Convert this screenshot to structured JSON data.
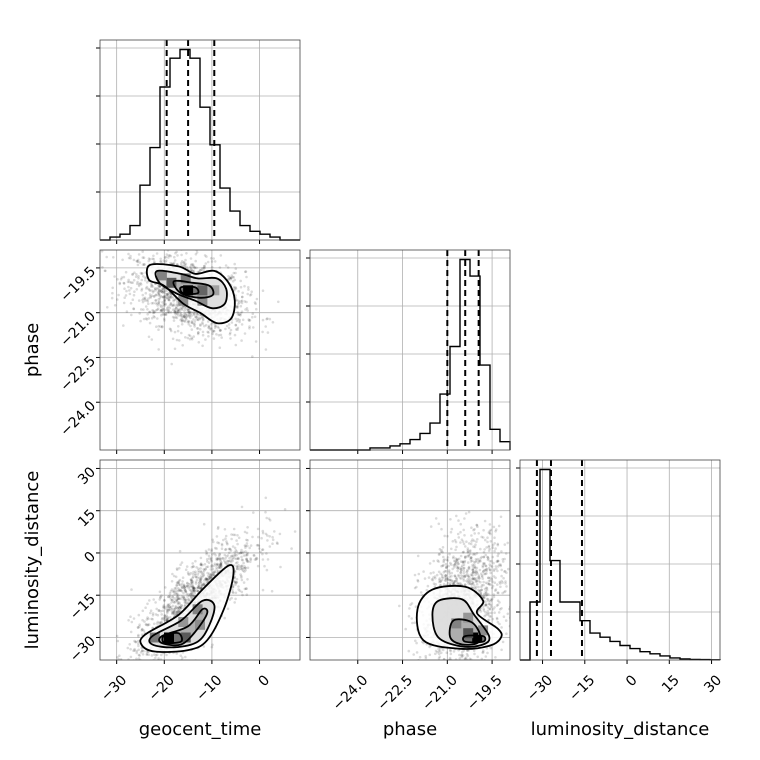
{
  "chart_data": {
    "type": "corner",
    "parameters": [
      "geocent_time",
      "phase",
      "luminosity_distance"
    ],
    "axis_labels": {
      "geocent_time": "geocent_time",
      "phase": "phase",
      "luminosity_distance": "luminosity_distance"
    },
    "ranges": {
      "geocent_time": [
        -33.5,
        8.5
      ],
      "phase": [
        -25.6,
        -18.9
      ],
      "luminosity_distance": [
        -38.0,
        33.0
      ]
    },
    "ticks": {
      "geocent_time": [
        -30,
        -20,
        -10,
        0
      ],
      "phase": [
        -24.0,
        -22.5,
        -21.0,
        -19.5
      ],
      "luminosity_distance": [
        -30,
        -15,
        0,
        15,
        30
      ]
    },
    "tick_labels": {
      "geocent_time": [
        "−30",
        "−20",
        "−10",
        "0"
      ],
      "phase": [
        "−24.0",
        "−22.5",
        "−21.0",
        "−19.5"
      ],
      "luminosity_distance": [
        "−30",
        "−15",
        "0",
        "15",
        "30"
      ]
    },
    "quantiles": {
      "geocent_time": [
        -19.5,
        -15.0,
        -9.5
      ],
      "phase": [
        -21.0,
        -20.4,
        -19.95
      ],
      "luminosity_distance": [
        -32.0,
        -27.0,
        -16.0
      ]
    },
    "histograms": {
      "geocent_time": {
        "edges": [
          -33.5,
          -31.4,
          -29.3,
          -27.2,
          -25.1,
          -23.0,
          -20.9,
          -18.8,
          -16.7,
          -14.6,
          -12.5,
          -10.4,
          -8.3,
          -6.2,
          -4.1,
          -2.0,
          0.1,
          2.2,
          4.3,
          6.4,
          8.5
        ],
        "counts": [
          0.0,
          0.01,
          0.02,
          0.05,
          0.19,
          0.32,
          0.53,
          0.63,
          0.66,
          0.63,
          0.46,
          0.33,
          0.18,
          0.1,
          0.05,
          0.03,
          0.02,
          0.01,
          0.0,
          0.0
        ]
      },
      "phase": {
        "edges": [
          -25.6,
          -25.265,
          -24.93,
          -24.595,
          -24.26,
          -23.925,
          -23.59,
          -23.255,
          -22.92,
          -22.585,
          -22.25,
          -21.915,
          -21.58,
          -21.245,
          -20.91,
          -20.575,
          -20.24,
          -19.905,
          -19.57,
          -19.235,
          -18.9
        ],
        "counts": [
          0,
          0,
          0,
          0,
          0,
          0,
          0.01,
          0.01,
          0.02,
          0.03,
          0.05,
          0.08,
          0.13,
          0.27,
          0.5,
          0.92,
          0.84,
          0.41,
          0.1,
          0.04
        ]
      },
      "luminosity_distance": {
        "edges": [
          -38.0,
          -34.45,
          -30.9,
          -27.35,
          -23.8,
          -20.25,
          -16.7,
          -13.15,
          -9.6,
          -6.05,
          -2.5,
          1.05,
          4.6,
          8.15,
          11.7,
          15.25,
          18.8,
          22.35,
          25.9,
          29.45,
          33.0
        ],
        "counts": [
          0,
          0.28,
          0.92,
          0.48,
          0.28,
          0.28,
          0.19,
          0.13,
          0.11,
          0.09,
          0.07,
          0.055,
          0.04,
          0.03,
          0.02,
          0.01,
          0.005,
          0.003,
          0.002,
          0.001
        ]
      }
    },
    "pairs": [
      {
        "x": "geocent_time",
        "y": "phase",
        "hot_cells": [
          [
            -15.0,
            -20.25,
            1.0
          ],
          [
            -18.5,
            -20.0,
            0.55
          ],
          [
            -12.0,
            -20.25,
            0.5
          ],
          [
            -15.5,
            -19.85,
            0.4
          ],
          [
            -20.5,
            -19.75,
            0.35
          ],
          [
            -12.0,
            -20.6,
            0.3
          ],
          [
            -16.0,
            -20.6,
            0.3
          ],
          [
            -9.5,
            -20.25,
            0.2
          ]
        ],
        "contours": [
          [
            [
              -23.0,
              -19.4
            ],
            [
              -17.0,
              -19.45
            ],
            [
              -13.5,
              -19.7
            ],
            [
              -9.5,
              -19.6
            ],
            [
              -6.5,
              -20.0
            ],
            [
              -5.2,
              -20.6
            ],
            [
              -6.0,
              -21.2
            ],
            [
              -9.0,
              -21.35
            ],
            [
              -12.5,
              -21.0
            ],
            [
              -16.0,
              -20.7
            ],
            [
              -20.0,
              -20.1
            ],
            [
              -23.2,
              -19.9
            ]
          ],
          [
            [
              -21.5,
              -19.6
            ],
            [
              -16.5,
              -19.7
            ],
            [
              -13.0,
              -19.85
            ],
            [
              -9.0,
              -19.85
            ],
            [
              -7.0,
              -20.2
            ],
            [
              -7.3,
              -20.7
            ],
            [
              -10.0,
              -20.85
            ],
            [
              -13.5,
              -20.6
            ],
            [
              -17.5,
              -20.35
            ],
            [
              -21.0,
              -20.0
            ]
          ],
          [
            [
              -18.0,
              -19.95
            ],
            [
              -14.0,
              -20.0
            ],
            [
              -10.5,
              -20.1
            ],
            [
              -9.8,
              -20.4
            ],
            [
              -12.5,
              -20.5
            ],
            [
              -16.5,
              -20.35
            ]
          ],
          [
            [
              -16.5,
              -20.15
            ],
            [
              -13.5,
              -20.15
            ],
            [
              -13.0,
              -20.35
            ],
            [
              -16.0,
              -20.35
            ]
          ]
        ],
        "scatter": {
          "mean": [
            -15.0,
            -20.4
          ],
          "sd": [
            6.0,
            0.65
          ],
          "rho": -0.35,
          "n": 1600
        }
      },
      {
        "x": "geocent_time",
        "y": "luminosity_distance",
        "hot_cells": [
          [
            -19.0,
            -30.0,
            1.0
          ],
          [
            -15.5,
            -30.0,
            0.55
          ],
          [
            -22.0,
            -30.0,
            0.4
          ],
          [
            -13.0,
            -20.0,
            0.35
          ],
          [
            -12.5,
            -25.5,
            0.3
          ],
          [
            -16.0,
            -24.5,
            0.25
          ]
        ],
        "contours": [
          [
            [
              -24.0,
              -29.0
            ],
            [
              -17.0,
              -22.0
            ],
            [
              -12.0,
              -13.0
            ],
            [
              -6.5,
              -4.5
            ],
            [
              -5.5,
              -8.0
            ],
            [
              -7.5,
              -20.0
            ],
            [
              -11.0,
              -31.0
            ],
            [
              -15.0,
              -34.5
            ],
            [
              -22.0,
              -35.0
            ],
            [
              -24.8,
              -32.5
            ]
          ],
          [
            [
              -22.5,
              -29.5
            ],
            [
              -16.5,
              -24.0
            ],
            [
              -12.0,
              -17.0
            ],
            [
              -9.5,
              -18.5
            ],
            [
              -10.5,
              -25.5
            ],
            [
              -13.0,
              -31.5
            ],
            [
              -18.0,
              -33.5
            ],
            [
              -22.5,
              -32.5
            ]
          ],
          [
            [
              -20.5,
              -29.5
            ],
            [
              -15.0,
              -26.0
            ],
            [
              -12.0,
              -20.0
            ],
            [
              -11.0,
              -21.5
            ],
            [
              -13.5,
              -28.0
            ],
            [
              -16.5,
              -32.5
            ],
            [
              -20.5,
              -32.0
            ]
          ],
          [
            [
              -20.0,
              -29.3
            ],
            [
              -17.0,
              -28.5
            ],
            [
              -16.5,
              -31.5
            ],
            [
              -20.0,
              -31.8
            ]
          ]
        ],
        "scatter": {
          "mean": [
            -14.0,
            -18.0
          ],
          "sd": [
            6.5,
            12.0
          ],
          "rho": 0.82,
          "n": 1700
        }
      },
      {
        "x": "phase",
        "y": "luminosity_distance",
        "hot_cells": [
          [
            -20.0,
            -30.0,
            1.0
          ],
          [
            -20.3,
            -28.5,
            0.6
          ],
          [
            -20.7,
            -25.0,
            0.35
          ],
          [
            -20.3,
            -23.0,
            0.25
          ],
          [
            -19.8,
            -27.5,
            0.3
          ]
        ],
        "contours": [
          [
            [
              -21.5,
              -13.0
            ],
            [
              -20.4,
              -12.0
            ],
            [
              -19.8,
              -17.0
            ],
            [
              -20.0,
              -21.5
            ],
            [
              -19.3,
              -27.0
            ],
            [
              -19.2,
              -30.0
            ],
            [
              -19.6,
              -33.0
            ],
            [
              -20.6,
              -34.0
            ],
            [
              -21.8,
              -31.0
            ],
            [
              -22.0,
              -20.0
            ]
          ],
          [
            [
              -21.3,
              -17.0
            ],
            [
              -20.5,
              -16.5
            ],
            [
              -20.1,
              -22.0
            ],
            [
              -19.6,
              -29.5
            ],
            [
              -19.8,
              -32.5
            ],
            [
              -20.5,
              -33.2
            ],
            [
              -21.3,
              -30.0
            ],
            [
              -21.5,
              -22.0
            ]
          ],
          [
            [
              -20.8,
              -24.0
            ],
            [
              -20.2,
              -24.5
            ],
            [
              -19.9,
              -29.0
            ],
            [
              -20.0,
              -32.0
            ],
            [
              -20.5,
              -32.5
            ],
            [
              -20.9,
              -30.0
            ]
          ],
          [
            [
              -20.4,
              -29.5
            ],
            [
              -19.8,
              -29.5
            ],
            [
              -19.8,
              -31.5
            ],
            [
              -20.4,
              -31.5
            ]
          ]
        ],
        "scatter": {
          "mean": [
            -20.5,
            -18.0
          ],
          "sd": [
            0.7,
            12.0
          ],
          "rho": 0.3,
          "n": 1500
        }
      }
    ]
  }
}
